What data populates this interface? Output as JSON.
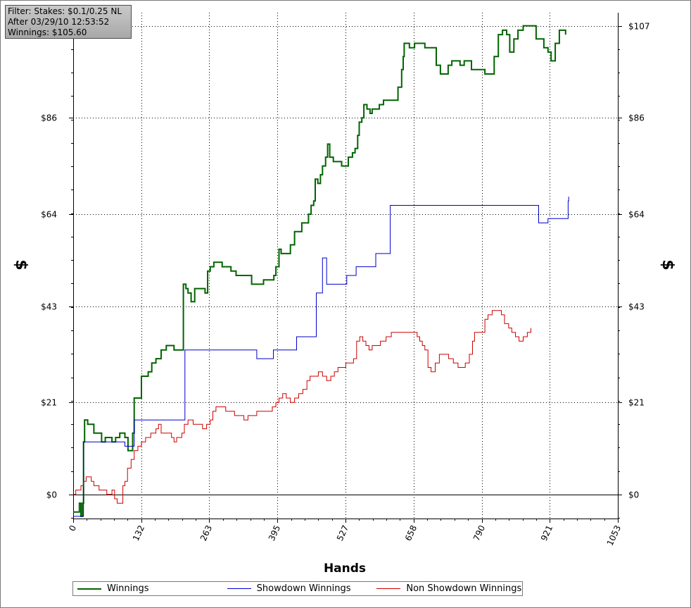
{
  "info": {
    "filter": "Filter: Stakes: $0.1/0.25 NL",
    "after": "After 03/29/10 12:53:52",
    "winnings": "Winnings: $105.60"
  },
  "colors": {
    "winnings": "#006400",
    "showdown": "#0000cc",
    "non_showdown": "#cc0000",
    "zero_line": "#000000",
    "grid": "#000000"
  },
  "chart_data": {
    "type": "line",
    "xlabel": "Hands",
    "ylabel": "$",
    "xlim": [
      0,
      1053
    ],
    "ylim": [
      -5.5,
      110
    ],
    "x_ticks": [
      0,
      132,
      263,
      395,
      527,
      658,
      790,
      921,
      1053
    ],
    "x_tick_labels": [
      "0",
      "132",
      "263",
      "395",
      "527",
      "658",
      "790",
      "921",
      "1053"
    ],
    "y_ticks": [
      0,
      21,
      43,
      64,
      86,
      107
    ],
    "y_tick_labels": [
      "$0",
      "$21",
      "$43",
      "$64",
      "$86",
      "$107"
    ],
    "grid": true,
    "legend_position": "bottom",
    "series": [
      {
        "name": "Winnings",
        "color": "#006400",
        "points": [
          [
            0,
            -4
          ],
          [
            10,
            -4
          ],
          [
            12,
            -2
          ],
          [
            15,
            -5
          ],
          [
            18,
            -2
          ],
          [
            20,
            12
          ],
          [
            22,
            17
          ],
          [
            28,
            16
          ],
          [
            35,
            16
          ],
          [
            40,
            14
          ],
          [
            48,
            14
          ],
          [
            55,
            12
          ],
          [
            62,
            13
          ],
          [
            75,
            12
          ],
          [
            82,
            13
          ],
          [
            90,
            14
          ],
          [
            100,
            13
          ],
          [
            106,
            10
          ],
          [
            110,
            10
          ],
          [
            115,
            14
          ],
          [
            118,
            22
          ],
          [
            130,
            22
          ],
          [
            132,
            27
          ],
          [
            145,
            28
          ],
          [
            152,
            30
          ],
          [
            160,
            31
          ],
          [
            170,
            33
          ],
          [
            180,
            34
          ],
          [
            195,
            33
          ],
          [
            210,
            33
          ],
          [
            213,
            48
          ],
          [
            218,
            47
          ],
          [
            222,
            46
          ],
          [
            228,
            44
          ],
          [
            235,
            47
          ],
          [
            240,
            47
          ],
          [
            248,
            47
          ],
          [
            255,
            46
          ],
          [
            260,
            51
          ],
          [
            265,
            52
          ],
          [
            272,
            53
          ],
          [
            280,
            53
          ],
          [
            288,
            52
          ],
          [
            296,
            52
          ],
          [
            305,
            51
          ],
          [
            315,
            50
          ],
          [
            325,
            50
          ],
          [
            335,
            50
          ],
          [
            345,
            48
          ],
          [
            355,
            48
          ],
          [
            368,
            49
          ],
          [
            380,
            49
          ],
          [
            388,
            50
          ],
          [
            392,
            52
          ],
          [
            398,
            56
          ],
          [
            402,
            55
          ],
          [
            412,
            55
          ],
          [
            420,
            57
          ],
          [
            428,
            60
          ],
          [
            435,
            60
          ],
          [
            442,
            62
          ],
          [
            448,
            62
          ],
          [
            455,
            64
          ],
          [
            460,
            66
          ],
          [
            465,
            67
          ],
          [
            468,
            72
          ],
          [
            473,
            71
          ],
          [
            478,
            73
          ],
          [
            482,
            75
          ],
          [
            488,
            77
          ],
          [
            492,
            80
          ],
          [
            496,
            77
          ],
          [
            503,
            76
          ],
          [
            512,
            76
          ],
          [
            519,
            75
          ],
          [
            525,
            75
          ],
          [
            532,
            77
          ],
          [
            540,
            78
          ],
          [
            545,
            79
          ],
          [
            550,
            82
          ],
          [
            553,
            85
          ],
          [
            558,
            86
          ],
          [
            562,
            89
          ],
          [
            568,
            88
          ],
          [
            574,
            87
          ],
          [
            578,
            88
          ],
          [
            585,
            88
          ],
          [
            592,
            89
          ],
          [
            600,
            90
          ],
          [
            610,
            90
          ],
          [
            620,
            90
          ],
          [
            628,
            93
          ],
          [
            635,
            97
          ],
          [
            638,
            100
          ],
          [
            640,
            103
          ],
          [
            650,
            102
          ],
          [
            660,
            103
          ],
          [
            672,
            103
          ],
          [
            680,
            102
          ],
          [
            688,
            102
          ],
          [
            696,
            102
          ],
          [
            702,
            98
          ],
          [
            710,
            96
          ],
          [
            718,
            96
          ],
          [
            725,
            98
          ],
          [
            732,
            99
          ],
          [
            740,
            99
          ],
          [
            748,
            98
          ],
          [
            756,
            99
          ],
          [
            762,
            99
          ],
          [
            770,
            97
          ],
          [
            778,
            97
          ],
          [
            786,
            97
          ],
          [
            796,
            96
          ],
          [
            806,
            96
          ],
          [
            814,
            100
          ],
          [
            822,
            105
          ],
          [
            830,
            106
          ],
          [
            838,
            105
          ],
          [
            844,
            101
          ],
          [
            852,
            104
          ],
          [
            860,
            106
          ],
          [
            870,
            107
          ],
          [
            880,
            107
          ],
          [
            888,
            107
          ],
          [
            895,
            104
          ],
          [
            902,
            104
          ],
          [
            910,
            102
          ],
          [
            918,
            101
          ],
          [
            924,
            99
          ],
          [
            932,
            103
          ],
          [
            940,
            106
          ],
          [
            946,
            106
          ],
          [
            952,
            105
          ]
        ]
      },
      {
        "name": "Showdown Winnings",
        "color": "#0000cc",
        "points": [
          [
            0,
            -5
          ],
          [
            16,
            -5
          ],
          [
            20,
            12
          ],
          [
            96,
            12
          ],
          [
            100,
            11
          ],
          [
            118,
            17
          ],
          [
            213,
            17
          ],
          [
            216,
            33
          ],
          [
            312,
            33
          ],
          [
            355,
            31
          ],
          [
            375,
            31
          ],
          [
            387,
            33
          ],
          [
            402,
            33
          ],
          [
            432,
            36
          ],
          [
            466,
            36
          ],
          [
            470,
            46
          ],
          [
            478,
            46
          ],
          [
            482,
            54
          ],
          [
            490,
            48
          ],
          [
            523,
            48
          ],
          [
            529,
            50
          ],
          [
            547,
            52
          ],
          [
            557,
            52
          ],
          [
            585,
            55
          ],
          [
            613,
            66
          ],
          [
            897,
            66
          ],
          [
            900,
            62
          ],
          [
            910,
            62
          ],
          [
            918,
            63
          ],
          [
            954,
            63
          ],
          [
            957,
            67
          ],
          [
            958,
            68
          ]
        ]
      },
      {
        "name": "Non Showdown Winnings",
        "color": "#cc0000",
        "points": [
          [
            0,
            0
          ],
          [
            5,
            1
          ],
          [
            10,
            1
          ],
          [
            15,
            2
          ],
          [
            20,
            3
          ],
          [
            25,
            4
          ],
          [
            30,
            4
          ],
          [
            35,
            3
          ],
          [
            40,
            2
          ],
          [
            45,
            2
          ],
          [
            50,
            1
          ],
          [
            55,
            1
          ],
          [
            60,
            1
          ],
          [
            65,
            0
          ],
          [
            70,
            0
          ],
          [
            75,
            1
          ],
          [
            80,
            -1
          ],
          [
            85,
            -2
          ],
          [
            90,
            -2
          ],
          [
            96,
            2
          ],
          [
            100,
            3
          ],
          [
            105,
            6
          ],
          [
            112,
            8
          ],
          [
            118,
            10
          ],
          [
            125,
            11
          ],
          [
            132,
            12
          ],
          [
            140,
            13
          ],
          [
            150,
            14
          ],
          [
            160,
            15
          ],
          [
            165,
            16
          ],
          [
            170,
            14
          ],
          [
            180,
            14
          ],
          [
            190,
            13
          ],
          [
            195,
            12
          ],
          [
            200,
            13
          ],
          [
            210,
            14
          ],
          [
            215,
            16
          ],
          [
            222,
            17
          ],
          [
            232,
            16
          ],
          [
            242,
            16
          ],
          [
            250,
            15
          ],
          [
            258,
            16
          ],
          [
            265,
            17
          ],
          [
            270,
            19
          ],
          [
            276,
            20
          ],
          [
            285,
            20
          ],
          [
            295,
            19
          ],
          [
            305,
            19
          ],
          [
            312,
            18
          ],
          [
            320,
            18
          ],
          [
            330,
            17
          ],
          [
            338,
            18
          ],
          [
            348,
            18
          ],
          [
            355,
            19
          ],
          [
            365,
            19
          ],
          [
            375,
            19
          ],
          [
            385,
            20
          ],
          [
            392,
            21
          ],
          [
            398,
            22
          ],
          [
            405,
            23
          ],
          [
            412,
            22
          ],
          [
            420,
            21
          ],
          [
            428,
            22
          ],
          [
            436,
            23
          ],
          [
            444,
            24
          ],
          [
            452,
            26
          ],
          [
            458,
            27
          ],
          [
            466,
            27
          ],
          [
            474,
            28
          ],
          [
            482,
            27
          ],
          [
            490,
            26
          ],
          [
            498,
            27
          ],
          [
            505,
            28
          ],
          [
            512,
            29
          ],
          [
            520,
            29
          ],
          [
            527,
            30
          ],
          [
            535,
            30
          ],
          [
            542,
            31
          ],
          [
            548,
            35
          ],
          [
            554,
            36
          ],
          [
            560,
            35
          ],
          [
            566,
            34
          ],
          [
            572,
            33
          ],
          [
            578,
            34
          ],
          [
            585,
            34
          ],
          [
            594,
            35
          ],
          [
            605,
            36
          ],
          [
            615,
            37
          ],
          [
            625,
            37
          ],
          [
            635,
            37
          ],
          [
            645,
            37
          ],
          [
            655,
            37
          ],
          [
            665,
            36
          ],
          [
            670,
            35
          ],
          [
            675,
            34
          ],
          [
            680,
            33
          ],
          [
            686,
            29
          ],
          [
            692,
            28
          ],
          [
            700,
            30
          ],
          [
            708,
            32
          ],
          [
            716,
            32
          ],
          [
            726,
            31
          ],
          [
            735,
            30
          ],
          [
            744,
            29
          ],
          [
            752,
            29
          ],
          [
            758,
            30
          ],
          [
            766,
            32
          ],
          [
            772,
            35
          ],
          [
            776,
            37
          ],
          [
            782,
            37
          ],
          [
            790,
            37
          ],
          [
            796,
            40
          ],
          [
            802,
            41
          ],
          [
            810,
            42
          ],
          [
            820,
            42
          ],
          [
            828,
            41
          ],
          [
            834,
            39
          ],
          [
            842,
            38
          ],
          [
            848,
            37
          ],
          [
            855,
            36
          ],
          [
            862,
            35
          ],
          [
            870,
            36
          ],
          [
            878,
            37
          ],
          [
            885,
            38
          ]
        ]
      }
    ]
  }
}
